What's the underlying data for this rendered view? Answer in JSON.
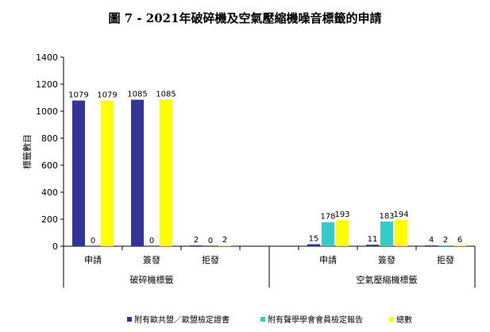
{
  "chart_data": {
    "type": "bar",
    "title": "圖 7 - 2021年破碎機及空氣壓縮機噪音標籤的申請",
    "ylabel": "標籤數目",
    "xlabel": "",
    "ylim": [
      0,
      1400
    ],
    "yticks": [
      0,
      200,
      400,
      600,
      800,
      1000,
      1200,
      1400
    ],
    "groups": [
      {
        "name": "破碎機標籤",
        "categories": [
          "申請",
          "簽發",
          "拒發"
        ]
      },
      {
        "name": "空氣壓縮機標籤",
        "categories": [
          "申請",
          "簽發",
          "拒發"
        ]
      }
    ],
    "series": [
      {
        "name": "附有歐共盟／歐盟檢定證書",
        "color": "#333399",
        "values": [
          1079,
          1085,
          2,
          15,
          11,
          4
        ]
      },
      {
        "name": "附有聲學學會會員檢定報告",
        "color": "#33CCCC",
        "values": [
          0,
          0,
          0,
          178,
          183,
          2
        ]
      },
      {
        "name": "總數",
        "color": "#FFFF00",
        "values": [
          1079,
          1085,
          2,
          193,
          194,
          6
        ]
      }
    ],
    "grid": false,
    "legend_position": "bottom"
  }
}
